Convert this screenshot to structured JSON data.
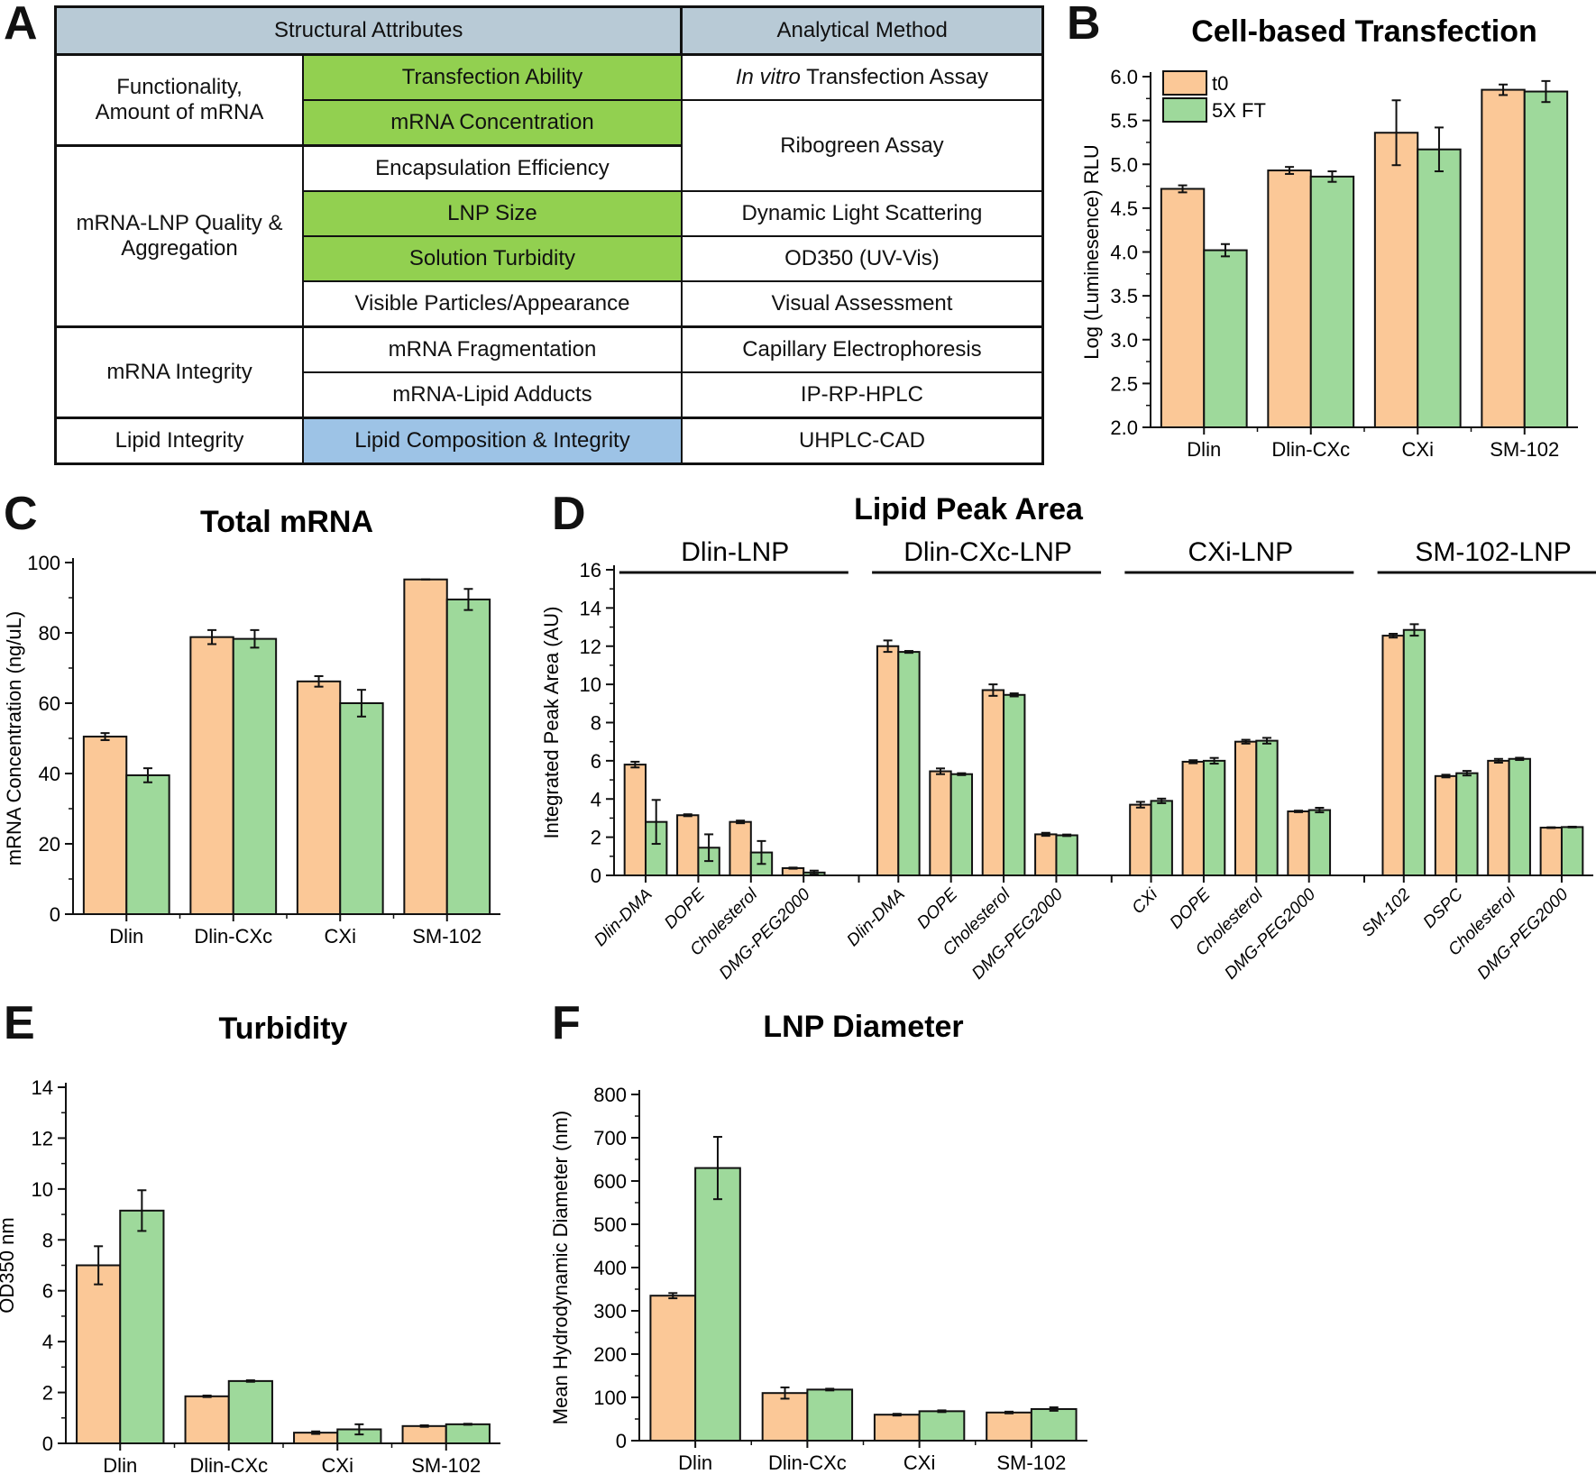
{
  "panel_letters": [
    "A",
    "B",
    "C",
    "D",
    "E",
    "F"
  ],
  "table": {
    "headers": [
      "Structural Attributes",
      "Analytical Method"
    ],
    "groups": [
      "Functionality, Amount of mRNA",
      "mRNA-LNP Quality & Aggregation",
      "mRNA Integrity",
      "Lipid Integrity"
    ],
    "attributes": [
      "Transfection Ability",
      "mRNA Concentration",
      "Encapsulation Efficiency",
      "LNP Size",
      "Solution Turbidity",
      "Visible Particles/Appearance",
      "mRNA Fragmentation",
      "mRNA-Lipid Adducts",
      "Lipid Composition & Integrity"
    ],
    "methods": {
      "invitro_italic": "In vitro",
      "transfection": " Transfection Assay",
      "ribogreen": "Ribogreen Assay",
      "dls": "Dynamic Light Scattering",
      "od350": "OD350 (UV-Vis)",
      "visual": "Visual Assessment",
      "ce": "Capillary Electrophoresis",
      "iprp": "IP-RP-HPLC",
      "uhplc": "UHPLC-CAD"
    },
    "highlight_colors": {
      "header": "#b8cad6",
      "green": "#92d050",
      "blue": "#9dc3e6"
    }
  },
  "colors": {
    "t0": "#fbc897",
    "ft": "#9ed99b"
  },
  "chart_data": [
    {
      "panel": "B",
      "type": "bar",
      "title": "Cell-based Transfection",
      "ylabel": "Log (Luminesence) RLU",
      "xlabel": "",
      "ylim": [
        2,
        6
      ],
      "ytick_step": 0.5,
      "ytick_decimals": 1,
      "legend": "top-left",
      "categories": [
        "Dlin",
        "Dlin-CXc",
        "CXi",
        "SM-102"
      ],
      "series": [
        {
          "name": "t0",
          "values": [
            4.72,
            4.93,
            5.36,
            5.85
          ],
          "errors": [
            0.04,
            0.04,
            0.37,
            0.06
          ]
        },
        {
          "name": "5X FT",
          "values": [
            4.02,
            4.86,
            5.17,
            5.83
          ],
          "errors": [
            0.07,
            0.06,
            0.25,
            0.12
          ]
        }
      ]
    },
    {
      "panel": "C",
      "type": "bar",
      "title": "Total mRNA",
      "ylabel": "mRNA Concentration (ng/uL)",
      "xlabel": "",
      "ylim": [
        0,
        100
      ],
      "ytick_step": 20,
      "ytick_decimals": 0,
      "categories": [
        "Dlin",
        "Dlin-CXc",
        "CXi",
        "SM-102"
      ],
      "series": [
        {
          "values": [
            50.5,
            78.8,
            66.2,
            95.2
          ],
          "errors": [
            1,
            2,
            1.5,
            0
          ]
        },
        {
          "values": [
            39.5,
            78.3,
            60,
            89.5
          ],
          "errors": [
            2,
            2.5,
            3.8,
            3
          ]
        }
      ]
    },
    {
      "panel": "D",
      "type": "bar",
      "title": "Lipid Peak Area",
      "ylabel": "Integrated Peak Area (AU)",
      "xlabel": "",
      "ylim": [
        0,
        16
      ],
      "ytick_step": 2,
      "ytick_decimals": 0,
      "groups": [
        {
          "label": "Dlin-LNP",
          "categories": [
            "Dlin-DMA",
            "DOPE",
            "Cholesterol",
            "DMG-PEG2000"
          ],
          "series": [
            {
              "values": [
                5.8,
                3.15,
                2.8,
                0.38
              ],
              "errors": [
                0.15,
                0.05,
                0.07,
                0.03
              ]
            },
            {
              "values": [
                2.8,
                1.45,
                1.2,
                0.15
              ],
              "errors": [
                1.15,
                0.7,
                0.6,
                0.1
              ]
            }
          ]
        },
        {
          "label": "Dlin-CXc-LNP",
          "categories": [
            "Dlin-DMA",
            "DOPE",
            "Cholesterol",
            "DMG-PEG2000"
          ],
          "series": [
            {
              "values": [
                12.0,
                5.45,
                9.7,
                2.15
              ],
              "errors": [
                0.3,
                0.15,
                0.3,
                0.08
              ]
            },
            {
              "values": [
                11.7,
                5.3,
                9.45,
                2.1
              ],
              "errors": [
                0.05,
                0.05,
                0.08,
                0.04
              ]
            }
          ]
        },
        {
          "label": "CXi-LNP",
          "categories": [
            "CXi",
            "DOPE",
            "Cholesterol",
            "DMG-PEG2000"
          ],
          "series": [
            {
              "values": [
                3.7,
                5.95,
                7.0,
                3.35
              ],
              "errors": [
                0.15,
                0.08,
                0.1,
                0.04
              ]
            },
            {
              "values": [
                3.9,
                6.0,
                7.05,
                3.42
              ],
              "errors": [
                0.12,
                0.15,
                0.15,
                0.12
              ]
            }
          ]
        },
        {
          "label": "SM-102-LNP",
          "categories": [
            "SM-102",
            "DSPC",
            "Cholesterol",
            "DMG-PEG2000"
          ],
          "series": [
            {
              "values": [
                12.55,
                5.2,
                6.0,
                2.5
              ],
              "errors": [
                0.1,
                0.07,
                0.1,
                0.02
              ]
            },
            {
              "values": [
                12.85,
                5.35,
                6.1,
                2.53
              ],
              "errors": [
                0.3,
                0.12,
                0.06,
                0.02
              ]
            }
          ]
        }
      ]
    },
    {
      "panel": "E",
      "type": "bar",
      "title": "Turbidity",
      "ylabel": "OD350 nm",
      "xlabel": "",
      "ylim": [
        0,
        14
      ],
      "ytick_step": 2,
      "ytick_decimals": 0,
      "categories": [
        "Dlin",
        "Dlin-CXc",
        "CXi",
        "SM-102"
      ],
      "series": [
        {
          "values": [
            7.0,
            1.85,
            0.42,
            0.68
          ],
          "errors": [
            0.75,
            0.03,
            0.05,
            0.03
          ]
        },
        {
          "values": [
            9.15,
            2.45,
            0.55,
            0.75
          ],
          "errors": [
            0.8,
            0.03,
            0.2,
            0.02
          ]
        }
      ]
    },
    {
      "panel": "F",
      "type": "bar",
      "title": "LNP Diameter",
      "ylabel": "Mean Hydrodynamic Diameter (nm)",
      "xlabel": "",
      "ylim": [
        0,
        800
      ],
      "ytick_step": 100,
      "ytick_decimals": 0,
      "categories": [
        "Dlin",
        "Dlin-CXc",
        "CXi",
        "SM-102"
      ],
      "series": [
        {
          "values": [
            335,
            110,
            60,
            65
          ],
          "errors": [
            6,
            13,
            2,
            2
          ]
        },
        {
          "values": [
            630,
            118,
            68,
            73
          ],
          "errors": [
            72,
            2,
            2,
            4
          ]
        }
      ]
    }
  ]
}
